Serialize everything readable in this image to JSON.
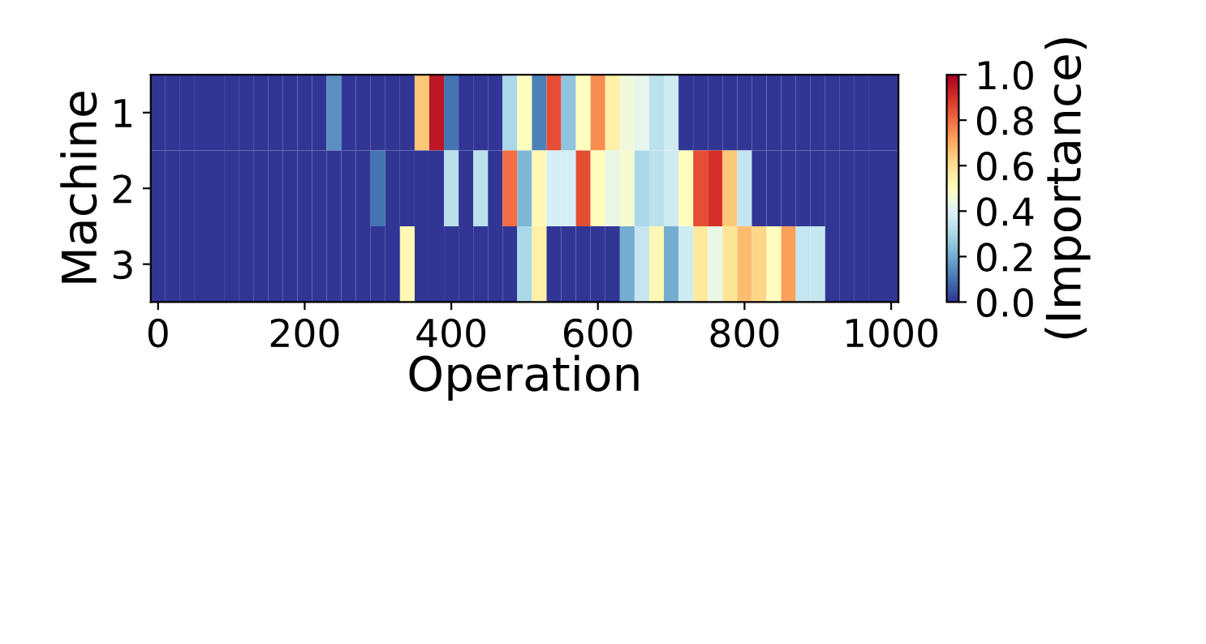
{
  "chart_data": {
    "type": "heatmap",
    "xlabel": "Operation",
    "ylabel": "Machine",
    "clabel": "(Importance)",
    "x": [
      0,
      20,
      40,
      60,
      80,
      100,
      120,
      140,
      160,
      180,
      200,
      220,
      240,
      260,
      280,
      300,
      320,
      340,
      360,
      380,
      400,
      420,
      440,
      460,
      480,
      500,
      520,
      540,
      560,
      580,
      600,
      620,
      640,
      660,
      680,
      700,
      720,
      740,
      760,
      780,
      800,
      820,
      840,
      860,
      880,
      900,
      920,
      940,
      960,
      980,
      1000
    ],
    "y_categories": [
      "1",
      "2",
      "3"
    ],
    "cells": [
      [
        0,
        0,
        0,
        0,
        0,
        0,
        0,
        0,
        0,
        0,
        0,
        0,
        0.15,
        0,
        0,
        0,
        0,
        0,
        0.65,
        0.95,
        0.1,
        0,
        0,
        0,
        0.3,
        0.5,
        0.12,
        0.85,
        0.25,
        0.5,
        0.75,
        0.55,
        0.45,
        0.42,
        0.33,
        0.37,
        0,
        0,
        0,
        0,
        0,
        0,
        0,
        0,
        0,
        0,
        0,
        0,
        0,
        0,
        0
      ],
      [
        0,
        0,
        0,
        0,
        0,
        0,
        0,
        0,
        0,
        0,
        0,
        0,
        0,
        0,
        0,
        0.1,
        0,
        0,
        0,
        0,
        0.33,
        0,
        0.33,
        0,
        0.8,
        0.22,
        0.52,
        0.38,
        0.38,
        0.85,
        0.5,
        0.43,
        0.47,
        0.3,
        0.33,
        0.37,
        0.5,
        0.85,
        0.9,
        0.65,
        0.35,
        0,
        0,
        0,
        0,
        0,
        0,
        0,
        0,
        0,
        0
      ],
      [
        0,
        0,
        0,
        0,
        0,
        0,
        0,
        0,
        0,
        0,
        0,
        0,
        0,
        0,
        0,
        0,
        0,
        0.52,
        0,
        0,
        0,
        0,
        0,
        0,
        0,
        0.3,
        0.55,
        0,
        0,
        0,
        0,
        0,
        0.2,
        0.35,
        0.52,
        0.2,
        0.37,
        0.57,
        0.43,
        0.58,
        0.67,
        0.62,
        0.5,
        0.72,
        0.35,
        0.35,
        0,
        0,
        0,
        0,
        0
      ]
    ],
    "xlim": [
      -10,
      1010
    ],
    "xticks": [
      0,
      200,
      400,
      600,
      800,
      1000
    ],
    "clim": [
      0.0,
      1.0
    ],
    "cticks": [
      {
        "value": 0,
        "label": "0.0"
      },
      {
        "value": 0.2,
        "label": "0.2"
      },
      {
        "value": 0.4,
        "label": "0.4"
      },
      {
        "value": 0.6,
        "label": "0.6"
      },
      {
        "value": 0.8,
        "label": "0.8"
      },
      {
        "value": 1,
        "label": "1.0"
      }
    ]
  }
}
